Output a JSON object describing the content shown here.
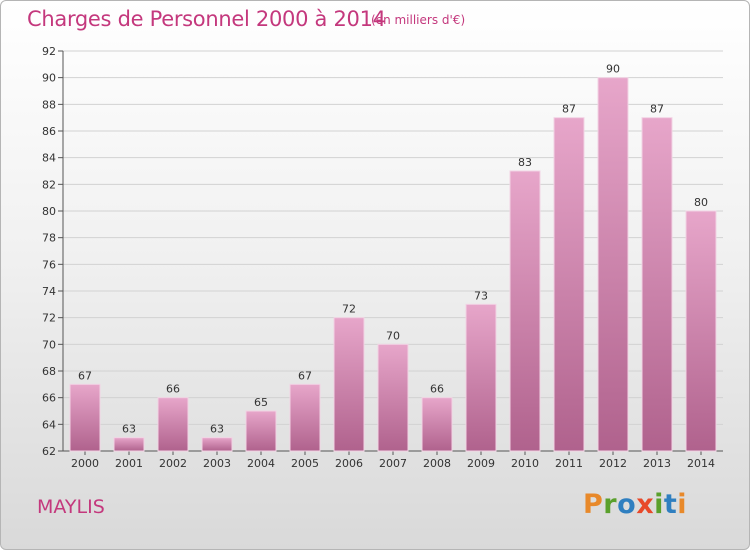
{
  "chart_data": {
    "type": "bar",
    "title": "Charges de Personnel 2000 à 2014",
    "subtitle": "(en milliers d'€)",
    "categories": [
      "2000",
      "2001",
      "2002",
      "2003",
      "2004",
      "2005",
      "2006",
      "2007",
      "2008",
      "2009",
      "2010",
      "2011",
      "2012",
      "2013",
      "2014"
    ],
    "values": [
      67,
      63,
      66,
      63,
      65,
      67,
      72,
      70,
      66,
      73,
      83,
      87,
      90,
      87,
      80
    ],
    "ylim": [
      62,
      92
    ],
    "yticks": [
      62,
      64,
      66,
      68,
      70,
      72,
      74,
      76,
      78,
      80,
      82,
      84,
      86,
      88,
      90,
      92
    ],
    "grid": true,
    "bar_color": "#d98bb4"
  },
  "footer": {
    "commune": "MAYLIS",
    "brand": [
      "P",
      "r",
      "o",
      "x",
      "i",
      "t",
      "i"
    ]
  }
}
